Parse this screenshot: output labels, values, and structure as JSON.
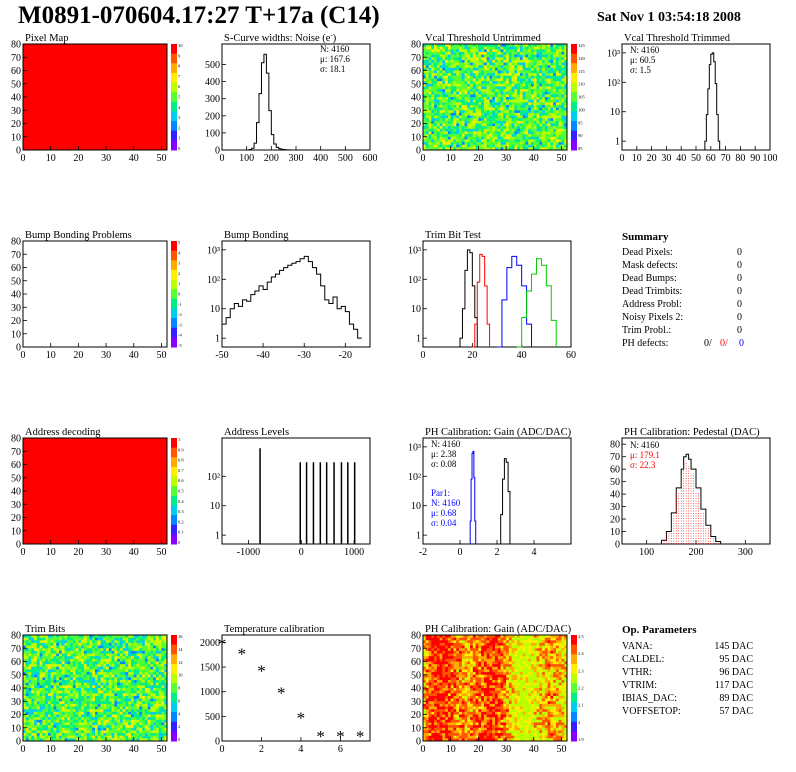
{
  "header": {
    "title": "M0891-070604.17:27 T+17a (C14)",
    "timestamp": "Sat Nov  1 03:54:18 2008"
  },
  "chart_data": [
    {
      "id": "pixel-map",
      "type": "heatmap",
      "title": "Pixel Map",
      "xlim": [
        0,
        52
      ],
      "ylim": [
        0,
        80
      ],
      "xticks": [
        0,
        10,
        20,
        30,
        40,
        50
      ],
      "yticks": [
        0,
        10,
        20,
        30,
        40,
        50,
        60,
        70,
        80
      ],
      "fill": "uniform-max",
      "palette_labels": [
        "10",
        "9",
        "8",
        "7",
        "6",
        "5",
        "4",
        "3",
        "2",
        "1",
        "0"
      ]
    },
    {
      "id": "noise",
      "type": "line",
      "title": "S-Curve widths: Noise (e",
      "title_suffix": ")",
      "title_superscript": "-",
      "xlim": [
        0,
        600
      ],
      "ylim": [
        0,
        620
      ],
      "xticks": [
        0,
        100,
        200,
        300,
        400,
        500,
        600
      ],
      "yticks": [
        0,
        100,
        200,
        300,
        400,
        500
      ],
      "stats": [
        {
          "label": "N:",
          "value": "4160"
        },
        {
          "label": "μ:",
          "value": "167.6"
        },
        {
          "label": "σ:",
          "value": "18.1"
        }
      ],
      "x": [
        100,
        110,
        120,
        130,
        140,
        150,
        160,
        170,
        180,
        190,
        200,
        210,
        220,
        230,
        240,
        250,
        260,
        270,
        280,
        290
      ],
      "y": [
        0,
        3,
        10,
        40,
        160,
        330,
        510,
        560,
        450,
        230,
        90,
        35,
        15,
        7,
        4,
        2,
        1,
        1,
        0,
        0
      ]
    },
    {
      "id": "vcal-untrimmed",
      "type": "heatmap",
      "title": "Vcal Threshold Untrimmed",
      "xlim": [
        0,
        52
      ],
      "ylim": [
        0,
        80
      ],
      "xticks": [
        0,
        10,
        20,
        30,
        40,
        50
      ],
      "yticks": [
        0,
        10,
        20,
        30,
        40,
        50,
        60,
        70,
        80
      ],
      "fill": "noise-green",
      "palette_labels": [
        "125",
        "120",
        "115",
        "110",
        "105",
        "100",
        "95",
        "90",
        "85"
      ]
    },
    {
      "id": "vcal-trimmed",
      "type": "line",
      "title": "Vcal Threshold Trimmed",
      "log": true,
      "xlim": [
        0,
        100
      ],
      "ylim": [
        0.5,
        2000
      ],
      "xticks": [
        0,
        10,
        20,
        30,
        40,
        50,
        60,
        70,
        80,
        90,
        100
      ],
      "yticks": [
        1,
        10,
        100,
        1000
      ],
      "yticklabels": [
        "1",
        "10",
        "10²",
        "10³"
      ],
      "stats": [
        {
          "label": "N:",
          "value": "4160"
        },
        {
          "label": "μ:",
          "value": "60.5"
        },
        {
          "label": "σ:",
          "value": " 1.5"
        }
      ],
      "x": [
        55,
        56,
        57,
        58,
        59,
        60,
        61,
        62,
        63,
        64,
        65,
        66
      ],
      "y": [
        0.5,
        1,
        8,
        60,
        400,
        900,
        1000,
        500,
        90,
        8,
        1,
        0.5
      ]
    },
    {
      "id": "bump-problems",
      "type": "heatmap",
      "title": "Bump Bonding Problems",
      "xlim": [
        0,
        52
      ],
      "ylim": [
        0,
        80
      ],
      "xticks": [
        0,
        10,
        20,
        30,
        40,
        50
      ],
      "yticks": [
        0,
        10,
        20,
        30,
        40,
        50,
        60,
        70,
        80
      ],
      "fill": "empty",
      "palette_labels": [
        "5",
        "4",
        "3",
        "2",
        "1",
        "0",
        "-1",
        "-2",
        "-3",
        "-4",
        "-5"
      ]
    },
    {
      "id": "bump-bonding",
      "type": "line",
      "title": "Bump Bonding",
      "log": true,
      "xlim": [
        -50,
        -14
      ],
      "ylim": [
        0.5,
        2000
      ],
      "xticks": [
        -50,
        -40,
        -30,
        -20
      ],
      "yticks": [
        1,
        10,
        100,
        1000
      ],
      "yticklabels": [
        "1",
        "10",
        "10²",
        "10³"
      ],
      "x": [
        -50,
        -49,
        -48,
        -47,
        -46,
        -45,
        -44,
        -43,
        -42,
        -41,
        -40,
        -39,
        -38,
        -37,
        -36,
        -35,
        -34,
        -33,
        -32,
        -31,
        -30,
        -29,
        -28,
        -27,
        -26,
        -25,
        -24,
        -23,
        -22,
        -21,
        -20,
        -19,
        -18,
        -17,
        -16
      ],
      "y": [
        3,
        5,
        10,
        15,
        12,
        20,
        18,
        30,
        40,
        60,
        45,
        80,
        120,
        150,
        200,
        250,
        300,
        350,
        400,
        500,
        600,
        400,
        250,
        150,
        60,
        20,
        15,
        25,
        10,
        12,
        8,
        3,
        2,
        1,
        1
      ]
    },
    {
      "id": "trim-bits-test",
      "type": "line",
      "title": "Trim Bit Test",
      "log": true,
      "xlim": [
        0,
        60
      ],
      "ylim": [
        0.5,
        2000
      ],
      "xticks": [
        0,
        20,
        40,
        60
      ],
      "yticks": [
        1,
        10,
        100,
        1000
      ],
      "yticklabels": [
        "1",
        "10",
        "10²",
        "10³"
      ],
      "series": [
        {
          "color": "#000000",
          "x": [
            14,
            15,
            16,
            17,
            18,
            19,
            20,
            21,
            22
          ],
          "y": [
            0.5,
            1,
            10,
            200,
            1000,
            800,
            60,
            5,
            0.5
          ]
        },
        {
          "color": "#ff0000",
          "x": [
            20,
            21,
            22,
            23,
            24,
            25,
            26,
            27
          ],
          "y": [
            0.5,
            3,
            80,
            700,
            600,
            60,
            3,
            0.5
          ]
        },
        {
          "color": "#0000ff",
          "x": [
            30,
            32,
            34,
            36,
            38,
            40,
            42,
            44
          ],
          "y": [
            0.5,
            20,
            250,
            600,
            300,
            60,
            3,
            0.5
          ]
        },
        {
          "color": "#00cc00",
          "x": [
            38,
            40,
            42,
            44,
            46,
            48,
            50,
            52,
            54
          ],
          "y": [
            0.5,
            5,
            40,
            150,
            500,
            300,
            60,
            4,
            0.5
          ]
        }
      ]
    },
    {
      "id": "address-decoding",
      "type": "heatmap",
      "title": "Address decoding",
      "xlim": [
        0,
        52
      ],
      "ylim": [
        0,
        80
      ],
      "xticks": [
        0,
        10,
        20,
        30,
        40,
        50
      ],
      "yticks": [
        0,
        10,
        20,
        30,
        40,
        50,
        60,
        70,
        80
      ],
      "fill": "uniform-max",
      "palette_labels": [
        "1",
        "0.9",
        "0.8",
        "0.7",
        "0.6",
        "0.5",
        "0.4",
        "0.3",
        "0.2",
        "0.1",
        "0"
      ]
    },
    {
      "id": "address-levels",
      "type": "line",
      "title": "Address Levels",
      "log": true,
      "xlim": [
        -1500,
        1300
      ],
      "ylim": [
        0.5,
        2000
      ],
      "xticks": [
        -1000,
        0,
        1000
      ],
      "yticks": [
        1,
        10,
        100
      ],
      "yticklabels": [
        "1",
        "10",
        "10²"
      ],
      "spikes": [
        -780,
        -20,
        100,
        230,
        360,
        480,
        620,
        760,
        880,
        1010
      ],
      "spike_heights": [
        900,
        300,
        300,
        300,
        300,
        300,
        300,
        300,
        300,
        300
      ]
    },
    {
      "id": "ph-gain",
      "type": "line",
      "title": "PH Calibration: Gain (ADC/DAC)",
      "log": true,
      "xlim": [
        -2,
        6
      ],
      "ylim": [
        0.5,
        2000
      ],
      "xticks": [
        -2,
        0,
        2,
        4
      ],
      "yticks": [
        1,
        10,
        100,
        1000
      ],
      "yticklabels": [
        "1",
        "10",
        "10²",
        "10³"
      ],
      "stats": [
        {
          "label": "N:",
          "value": "4160"
        },
        {
          "label": "μ:",
          "value": "2.38"
        },
        {
          "label": "σ:",
          "value": "0.08"
        }
      ],
      "stats2": [
        {
          "label": "Par1:",
          "value": ""
        },
        {
          "label": "N:",
          "value": "4160"
        },
        {
          "label": "μ:",
          "value": "0.68"
        },
        {
          "label": "σ:",
          "value": "0.04"
        }
      ],
      "series": [
        {
          "color": "#0000ff",
          "x": [
            0.5,
            0.55,
            0.6,
            0.65,
            0.7,
            0.75,
            0.8,
            0.85
          ],
          "y": [
            0.5,
            3,
            80,
            600,
            700,
            90,
            3,
            0.5
          ]
        },
        {
          "color": "#000000",
          "x": [
            2.1,
            2.2,
            2.3,
            2.4,
            2.5,
            2.6,
            2.7
          ],
          "y": [
            0.5,
            5,
            80,
            400,
            300,
            30,
            0.5
          ]
        }
      ]
    },
    {
      "id": "ph-pedestal",
      "type": "line",
      "title": "PH Calibration: Pedestal (DAC)",
      "xlim": [
        50,
        350
      ],
      "ylim": [
        0,
        85
      ],
      "xticks": [
        100,
        200,
        300
      ],
      "yticks": [
        0,
        10,
        20,
        30,
        40,
        50,
        60,
        70,
        80
      ],
      "stats": [
        {
          "label": "N:",
          "value": "4160",
          "color": "#000000"
        },
        {
          "label": "μ:",
          "value": "179.1",
          "color": "#ff0000"
        },
        {
          "label": "σ:",
          "value": "22.3",
          "color": "#ff0000"
        }
      ],
      "x": [
        120,
        130,
        140,
        150,
        160,
        170,
        175,
        180,
        185,
        190,
        200,
        210,
        220,
        230,
        240,
        250
      ],
      "y": [
        0,
        3,
        10,
        25,
        45,
        60,
        70,
        72,
        68,
        60,
        45,
        28,
        15,
        6,
        2,
        0
      ]
    },
    {
      "id": "trim-bits",
      "type": "heatmap",
      "title": "Trim Bits",
      "xlim": [
        0,
        52
      ],
      "ylim": [
        0,
        80
      ],
      "xticks": [
        0,
        10,
        20,
        30,
        40,
        50
      ],
      "yticks": [
        0,
        10,
        20,
        30,
        40,
        50,
        60,
        70,
        80
      ],
      "fill": "noise-green",
      "palette_labels": [
        "16",
        "14",
        "12",
        "10",
        "8",
        "6",
        "4",
        "2",
        "0"
      ]
    },
    {
      "id": "temperature",
      "type": "scatter",
      "title": "Temperature calibration",
      "xlim": [
        0,
        7.5
      ],
      "ylim": [
        0,
        2150
      ],
      "xticks": [
        0,
        2,
        4,
        6
      ],
      "yticks": [
        0,
        500,
        1000,
        1500,
        2000
      ],
      "x": [
        0,
        1,
        2,
        3,
        4,
        5,
        6,
        7
      ],
      "y": [
        2000,
        1800,
        1450,
        1000,
        500,
        120,
        120,
        120
      ]
    },
    {
      "id": "ph-gain-map",
      "type": "heatmap",
      "title": "PH Calibration: Gain (ADC/DAC)",
      "xlim": [
        0,
        52
      ],
      "ylim": [
        0,
        80
      ],
      "xticks": [
        0,
        10,
        20,
        30,
        40,
        50
      ],
      "yticks": [
        0,
        10,
        20,
        30,
        40,
        50,
        60,
        70,
        80
      ],
      "fill": "red-bands",
      "palette_labels": [
        "2.5",
        "2.4",
        "2.3",
        "2.2",
        "2.1",
        "2",
        "1.9"
      ]
    }
  ],
  "summary": {
    "title": "Summary",
    "rows": [
      {
        "label": "Dead Pixels:",
        "value": "0"
      },
      {
        "label": "Mask defects:",
        "value": "0"
      },
      {
        "label": "Dead Bumps:",
        "value": "0"
      },
      {
        "label": "Dead Trimbits:",
        "value": "0"
      },
      {
        "label": "Address Probl:",
        "value": "0"
      },
      {
        "label": "Noisy Pixels 2:",
        "value": "0"
      },
      {
        "label": "Trim Probl.:",
        "value": "0"
      }
    ],
    "ph_label": "PH defects:",
    "ph_values": [
      {
        "text": "0/",
        "color": "#000000"
      },
      {
        "text": "0/",
        "color": "#ff0000"
      },
      {
        "text": "0",
        "color": "#0000ff"
      }
    ]
  },
  "op_params": {
    "title": "Op. Parameters",
    "rows": [
      {
        "label": "VANA:",
        "value": "145 DAC"
      },
      {
        "label": "CALDEL:",
        "value": "95 DAC"
      },
      {
        "label": "VTHR:",
        "value": "96 DAC"
      },
      {
        "label": "VTRIM:",
        "value": "117 DAC"
      },
      {
        "label": "IBIAS_DAC:",
        "value": "89 DAC"
      },
      {
        "label": "VOFFSETOP:",
        "value": "57 DAC"
      }
    ]
  }
}
